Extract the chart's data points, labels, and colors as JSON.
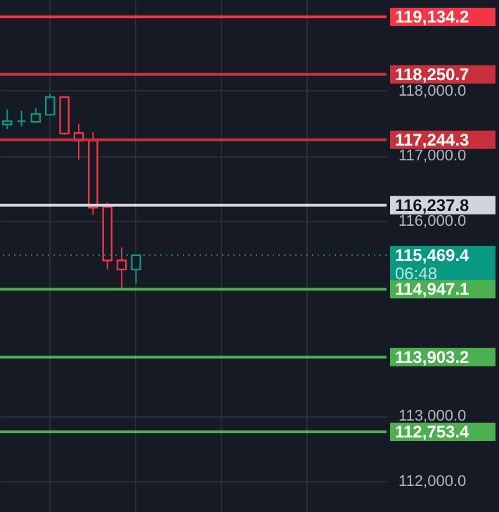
{
  "chart_data": {
    "type": "candlestick",
    "categories": [
      null,
      null,
      null,
      null,
      null,
      null,
      null,
      null,
      null,
      null,
      null,
      null,
      null,
      null,
      null,
      null,
      null,
      null,
      null,
      null,
      null,
      null,
      null,
      null,
      null,
      null,
      null
    ],
    "ohlc": [
      [
        117480,
        117710,
        117410,
        117530
      ],
      [
        117530,
        117690,
        117450,
        117530
      ],
      [
        117520,
        117730,
        117520,
        117640
      ],
      [
        117630,
        117950,
        117630,
        117900
      ],
      [
        117900,
        117920,
        117320,
        117340
      ],
      [
        117350,
        117490,
        116940,
        117230
      ],
      [
        117230,
        117360,
        116090,
        116200
      ],
      [
        116210,
        116280,
        115250,
        115390
      ],
      [
        115390,
        115590,
        114960,
        115250
      ],
      [
        115250,
        115470,
        115030,
        115469.4
      ],
      null,
      null,
      null,
      null,
      null,
      null,
      null,
      null,
      null,
      null,
      null,
      null,
      null,
      null,
      null,
      null,
      null
    ],
    "colors": [
      "#089981",
      "#089981",
      "#089981",
      "#089981",
      "#f23645",
      "#f23645",
      "#f23645",
      "#f23645",
      "#f23645",
      "#089981",
      null,
      null,
      null,
      null,
      null,
      null,
      null,
      null,
      null,
      null,
      null,
      null,
      null,
      null,
      null,
      null,
      null
    ],
    "ylim": [
      111520,
      119394
    ],
    "yticks": [
      {
        "value": 112000,
        "label": "112,000.0"
      },
      {
        "value": 113000,
        "label": "113,000.0"
      },
      {
        "value": 116000,
        "label": "116,000.0"
      },
      {
        "value": 117000,
        "label": "117,000.0"
      },
      {
        "value": 118000,
        "label": "118,000.0"
      }
    ],
    "grid": true,
    "tick_labels": "y",
    "ref_lines": [
      {
        "axis": "y",
        "value": 119134.2,
        "label": "119,134.2",
        "color": "#f23645",
        "line_style": "solid"
      },
      {
        "axis": "y",
        "value": 118250.7,
        "label": "118,250.7",
        "color": "#c8303c",
        "line_style": "solid"
      },
      {
        "axis": "y",
        "value": 117244.3,
        "label": "117,244.3",
        "color": "#c8303c",
        "line_style": "solid"
      },
      {
        "axis": "y",
        "value": 116237.8,
        "label": "116,237.8",
        "color": "#d1d4dc",
        "line_style": "solid"
      },
      {
        "axis": "y",
        "value": 115469.4,
        "label": "115,469.4",
        "color": "#089981",
        "line_style": "dotted"
      },
      {
        "axis": "y",
        "value": 114947.1,
        "label": "114,947.1",
        "color": "#4caf50",
        "line_style": "solid"
      },
      {
        "axis": "y",
        "value": 113903.2,
        "label": "113,903.2",
        "color": "#4caf50",
        "line_style": "solid"
      },
      {
        "axis": "y",
        "value": 112753.4,
        "label": "112,753.4",
        "color": "#4caf50",
        "line_style": "solid"
      }
    ],
    "annotations": [
      "06:48"
    ]
  }
}
